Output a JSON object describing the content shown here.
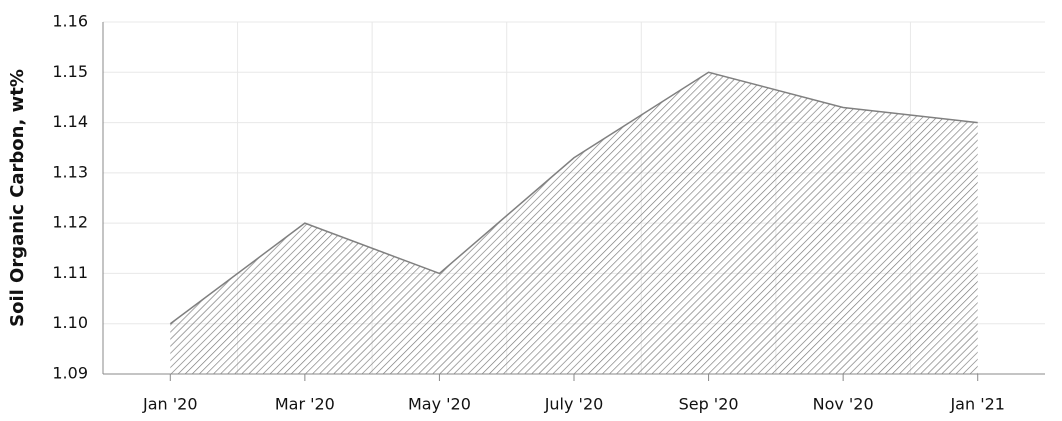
{
  "chart_data": {
    "type": "area",
    "y_label": "Soil Organic Carbon, wt%",
    "categories": [
      "Jan '20",
      "Mar '20",
      "May '20",
      "July '20",
      "Sep '20",
      "Nov '20",
      "Jan '21"
    ],
    "values": [
      1.1,
      1.12,
      1.11,
      1.133,
      1.15,
      1.143,
      1.14
    ],
    "color": "#808080",
    "ylim": [
      1.09,
      1.16
    ],
    "yticks": [
      1.09,
      {
        "value": 1.1,
        "label": "1.10"
      },
      1.11,
      1.12,
      1.13,
      1.14,
      1.15,
      1.16
    ],
    "grid": true
  }
}
